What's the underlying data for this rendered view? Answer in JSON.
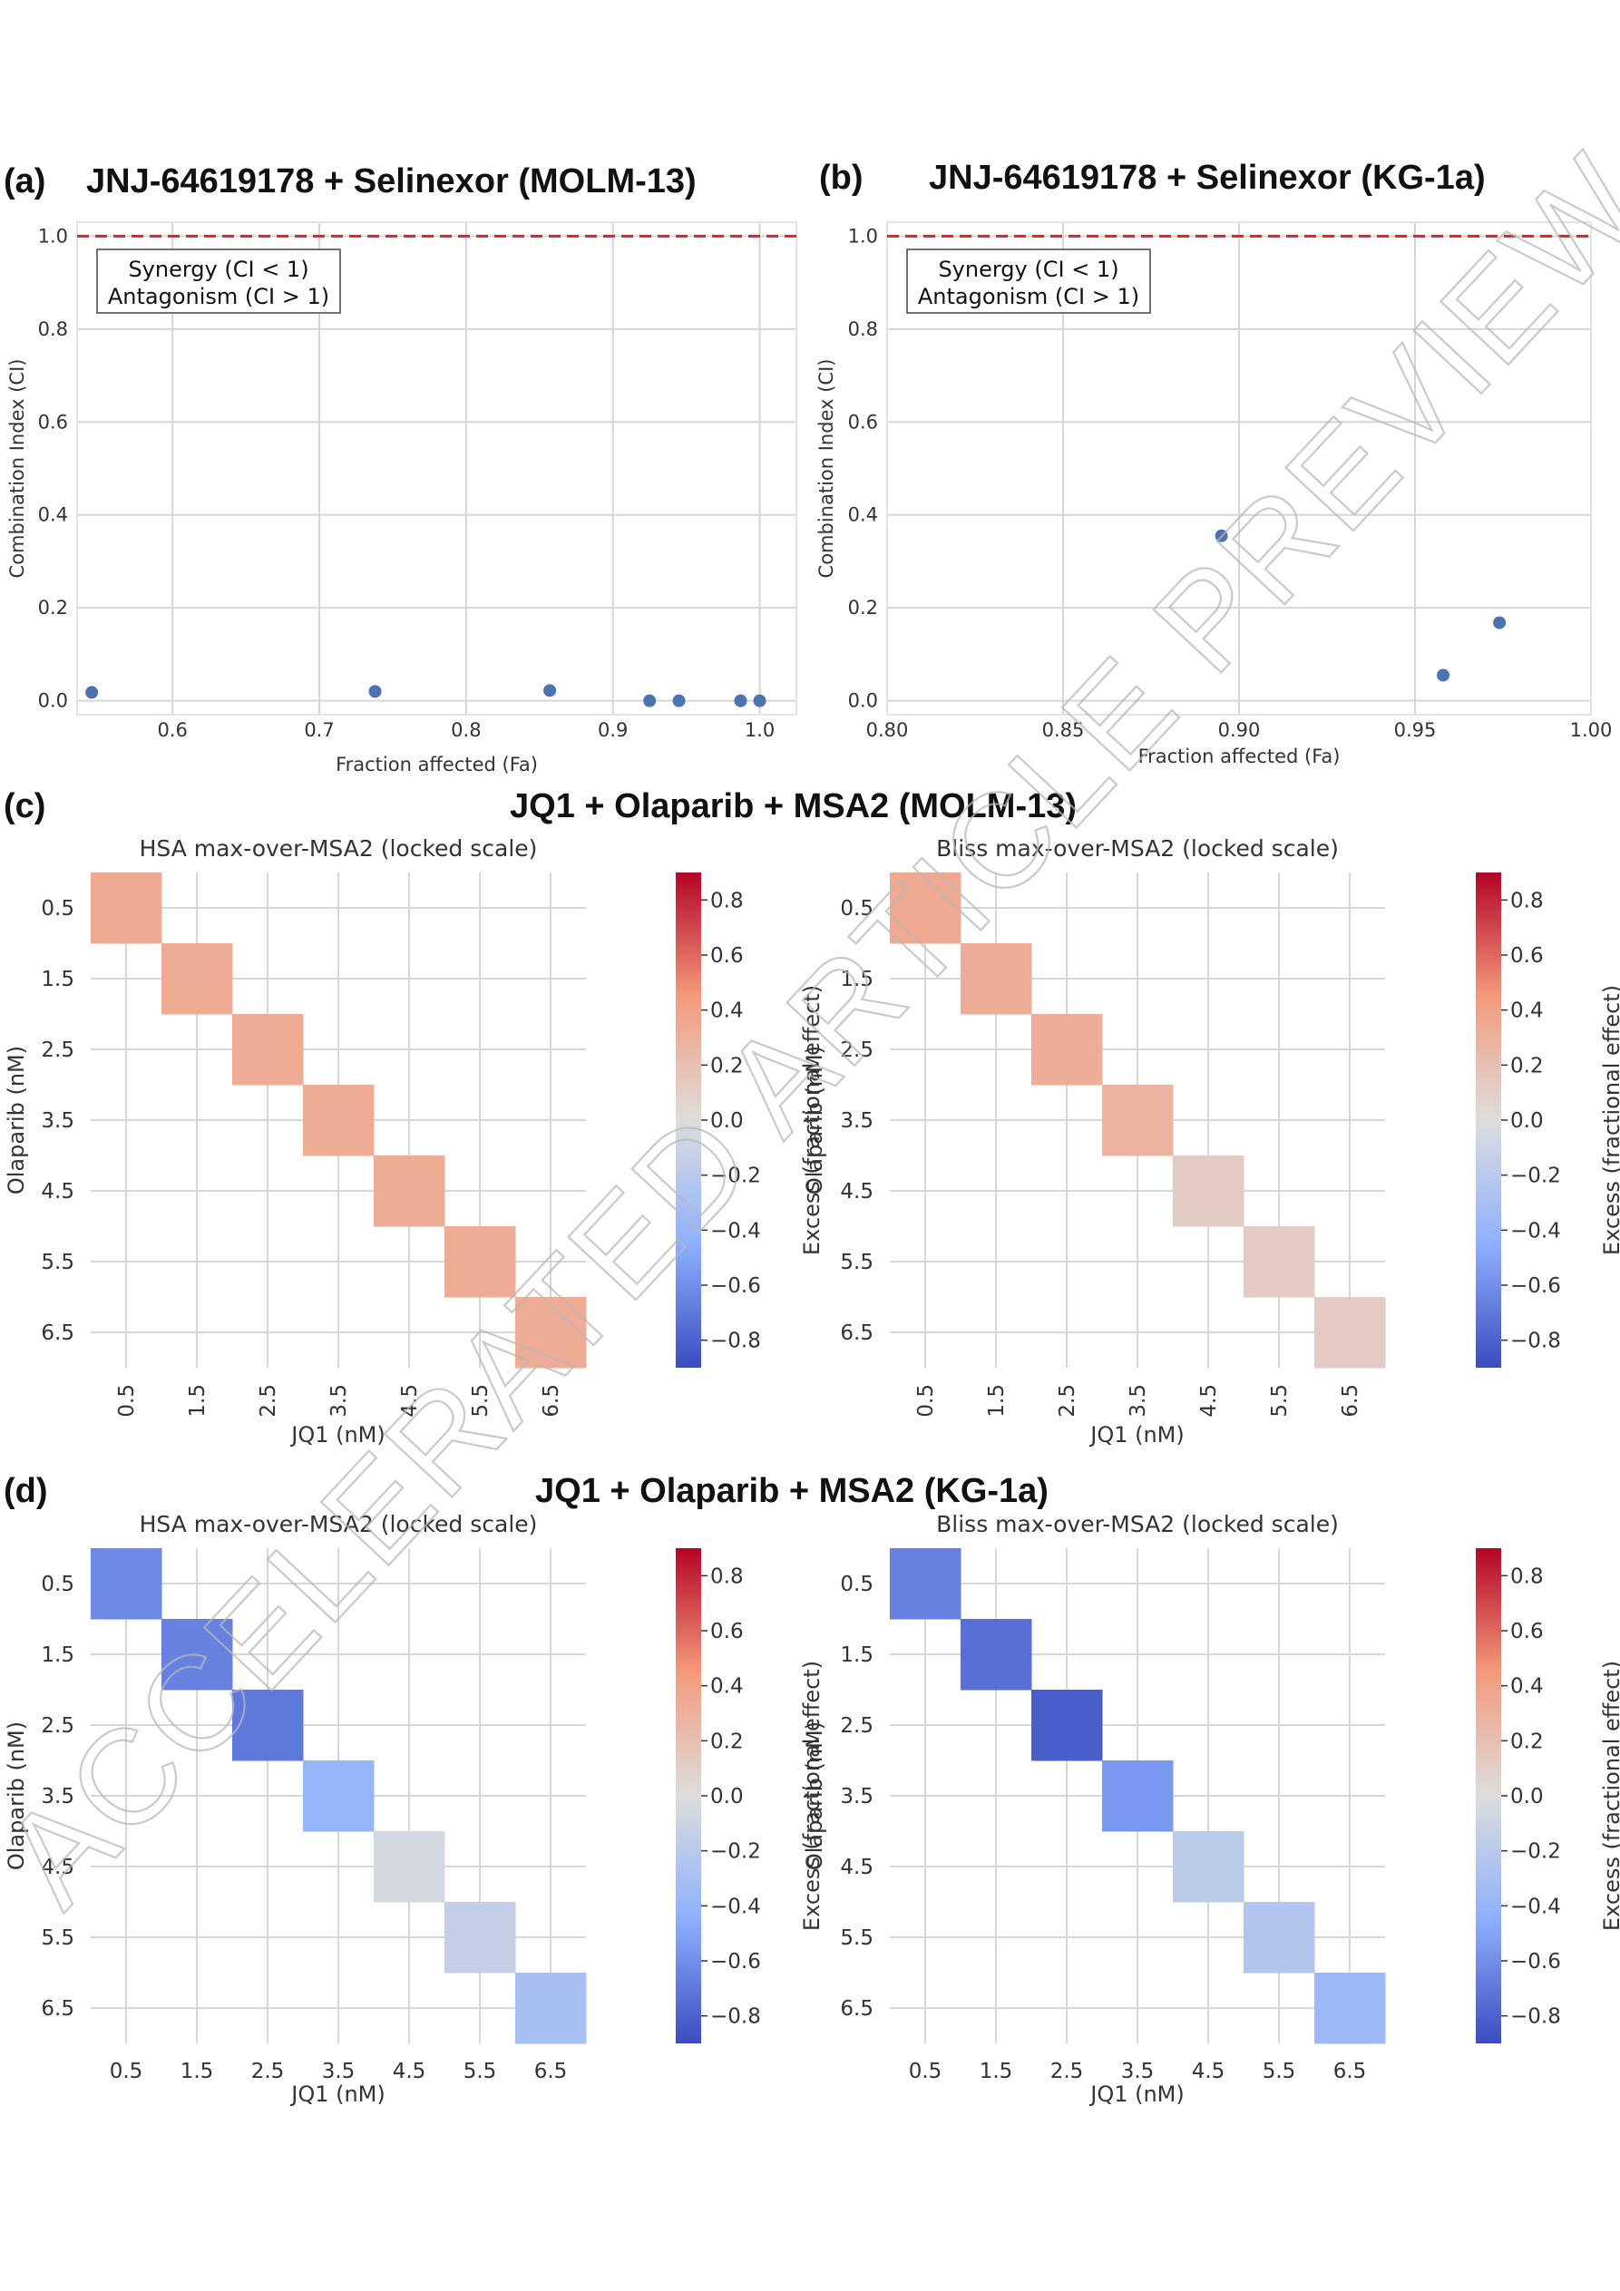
{
  "watermark": "ACCELERATED ARTICLE PREVIEW",
  "colors": {
    "scatter_point": "#4c72b0",
    "ci_threshold_line": "#dd2222",
    "grid": "#d6d6d6",
    "colormap": "coolwarm"
  },
  "panels": {
    "a": {
      "letter": "(a)",
      "title": "JNJ-64619178 + Selinexor (MOLM-13)"
    },
    "b": {
      "letter": "(b)",
      "title": "JNJ-64619178 + Selinexor (KG-1a)"
    },
    "c": {
      "letter": "(c)",
      "title": "JQ1 + Olaparib + MSA2 (MOLM-13)"
    },
    "d": {
      "letter": "(d)",
      "title": "JQ1 + Olaparib + MSA2 (KG-1a)"
    }
  },
  "chart_data": [
    {
      "id": "a",
      "type": "scatter",
      "xlabel": "Fraction affected (Fa)",
      "ylabel": "Combination Index (CI)",
      "xlim": [
        0.535,
        1.025
      ],
      "ylim": [
        -0.03,
        1.03
      ],
      "xticks": [
        0.6,
        0.7,
        0.8,
        0.9,
        1.0
      ],
      "xtick_labels": [
        "0.6",
        "0.7",
        "0.8",
        "0.9",
        "1.0"
      ],
      "yticks": [
        0.0,
        0.2,
        0.4,
        0.6,
        0.8,
        1.0
      ],
      "ytick_labels": [
        "0.0",
        "0.2",
        "0.4",
        "0.6",
        "0.8",
        "1.0"
      ],
      "threshold": 1.0,
      "legend": [
        "Synergy (CI < 1)",
        "Antagonism (CI > 1)"
      ],
      "legend_position": "top-left",
      "grid": true,
      "x": [
        0.545,
        0.738,
        0.857,
        0.925,
        0.945,
        0.987,
        1.0
      ],
      "y": [
        0.018,
        0.02,
        0.022,
        0.0,
        0.0,
        0.0,
        0.0
      ]
    },
    {
      "id": "b",
      "type": "scatter",
      "xlabel": "Fraction affected (Fa)",
      "ylabel": "Combination Index (CI)",
      "xlim": [
        0.8,
        1.0
      ],
      "ylim": [
        -0.03,
        1.03
      ],
      "xticks": [
        0.8,
        0.85,
        0.9,
        0.95,
        1.0
      ],
      "xtick_labels": [
        "0.80",
        "0.85",
        "0.90",
        "0.95",
        "1.00"
      ],
      "yticks": [
        0.0,
        0.2,
        0.4,
        0.6,
        0.8,
        1.0
      ],
      "ytick_labels": [
        "0.0",
        "0.2",
        "0.4",
        "0.6",
        "0.8",
        "1.0"
      ],
      "threshold": 1.0,
      "legend": [
        "Synergy (CI < 1)",
        "Antagonism (CI > 1)"
      ],
      "legend_position": "top-left",
      "grid": true,
      "x": [
        0.895,
        0.958,
        0.974
      ],
      "y": [
        0.355,
        0.055,
        0.168
      ]
    },
    {
      "id": "c-hsa",
      "type": "heatmap",
      "title": "HSA max-over-MSA2 (locked scale)",
      "xlabel": "JQ1 (nM)",
      "ylabel": "Olaparib (nM)",
      "colorbar_label": "Excess (fractional effect)",
      "vmin": -0.9,
      "vmax": 0.9,
      "colorbar_ticks": [
        "0.8",
        "0.6",
        "0.4",
        "0.2",
        "0.0",
        "−0.2",
        "−0.4",
        "−0.6",
        "−0.8"
      ],
      "x": [
        "0.5",
        "1.5",
        "2.5",
        "3.5",
        "4.5",
        "5.5",
        "6.5"
      ],
      "y": [
        "0.5",
        "1.5",
        "2.5",
        "3.5",
        "4.5",
        "5.5",
        "6.5"
      ],
      "xtick_rotation": "vertical",
      "diagonal_values": [
        0.35,
        0.33,
        0.33,
        0.33,
        0.33,
        0.33,
        0.33
      ]
    },
    {
      "id": "c-bliss",
      "type": "heatmap",
      "title": "Bliss max-over-MSA2 (locked scale)",
      "xlabel": "JQ1 (nM)",
      "ylabel": "Olaparib (nM)",
      "colorbar_label": "Excess (fractional effect)",
      "vmin": -0.9,
      "vmax": 0.9,
      "colorbar_ticks": [
        "0.8",
        "0.6",
        "0.4",
        "0.2",
        "0.0",
        "−0.2",
        "−0.4",
        "−0.6",
        "−0.8"
      ],
      "x": [
        "0.5",
        "1.5",
        "2.5",
        "3.5",
        "4.5",
        "5.5",
        "6.5"
      ],
      "y": [
        "0.5",
        "1.5",
        "2.5",
        "3.5",
        "4.5",
        "5.5",
        "6.5"
      ],
      "xtick_rotation": "vertical",
      "diagonal_values": [
        0.35,
        0.32,
        0.32,
        0.28,
        0.12,
        0.12,
        0.12
      ]
    },
    {
      "id": "d-hsa",
      "type": "heatmap",
      "title": "HSA max-over-MSA2 (locked scale)",
      "xlabel": "JQ1 (nM)",
      "ylabel": "Olaparib (nM)",
      "colorbar_label": "Excess (fractional effect)",
      "vmin": -0.9,
      "vmax": 0.9,
      "colorbar_ticks": [
        "0.8",
        "0.6",
        "0.4",
        "0.2",
        "0.0",
        "−0.2",
        "−0.4",
        "−0.6",
        "−0.8"
      ],
      "x": [
        "0.5",
        "1.5",
        "2.5",
        "3.5",
        "4.5",
        "5.5",
        "6.5"
      ],
      "y": [
        "0.5",
        "1.5",
        "2.5",
        "3.5",
        "4.5",
        "5.5",
        "6.5"
      ],
      "xtick_rotation": "horizontal",
      "diagonal_values": [
        -0.62,
        -0.66,
        -0.7,
        -0.4,
        -0.05,
        -0.14,
        -0.3
      ]
    },
    {
      "id": "d-bliss",
      "type": "heatmap",
      "title": "Bliss max-over-MSA2 (locked scale)",
      "xlabel": "JQ1 (nM)",
      "ylabel": "Olaparib (nM)",
      "colorbar_label": "Excess (fractional effect)",
      "vmin": -0.9,
      "vmax": 0.9,
      "colorbar_ticks": [
        "0.8",
        "0.6",
        "0.4",
        "0.2",
        "0.0",
        "−0.2",
        "−0.4",
        "−0.6",
        "−0.8"
      ],
      "x": [
        "0.5",
        "1.5",
        "2.5",
        "3.5",
        "4.5",
        "5.5",
        "6.5"
      ],
      "y": [
        "0.5",
        "1.5",
        "2.5",
        "3.5",
        "4.5",
        "5.5",
        "6.5"
      ],
      "xtick_rotation": "horizontal",
      "diagonal_values": [
        -0.66,
        -0.74,
        -0.82,
        -0.56,
        -0.18,
        -0.24,
        -0.36
      ]
    }
  ]
}
